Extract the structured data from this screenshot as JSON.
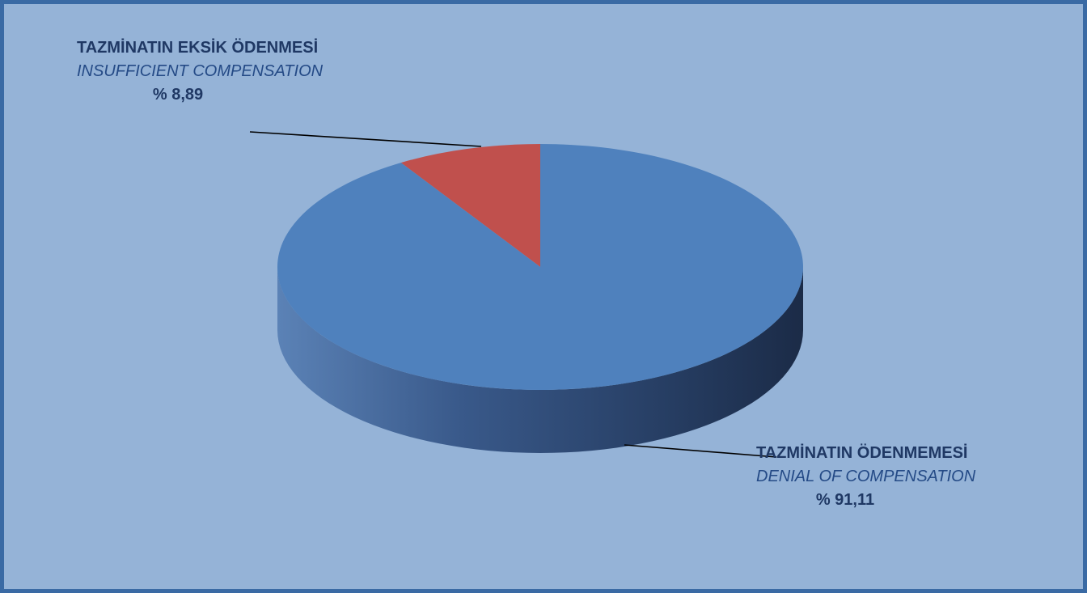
{
  "chart_data": {
    "type": "pie",
    "style": "3d",
    "slices": [
      {
        "label_tr": "TAZMİNATIN EKSİK ÖDENMESİ",
        "label_en": "INSUFFICIENT COMPENSATION",
        "value": 8.89,
        "value_text": "% 8,89",
        "color": "#c0504d"
      },
      {
        "label_tr": "TAZMİNATIN ÖDENMEMESİ",
        "label_en": "DENIAL OF COMPENSATION",
        "value": 91.11,
        "value_text": "% 91,11",
        "color": "#4f81bd"
      }
    ]
  },
  "colors": {
    "background": "#95b3d7",
    "border": "#3a6aa4",
    "label_text": "#1f3864"
  }
}
